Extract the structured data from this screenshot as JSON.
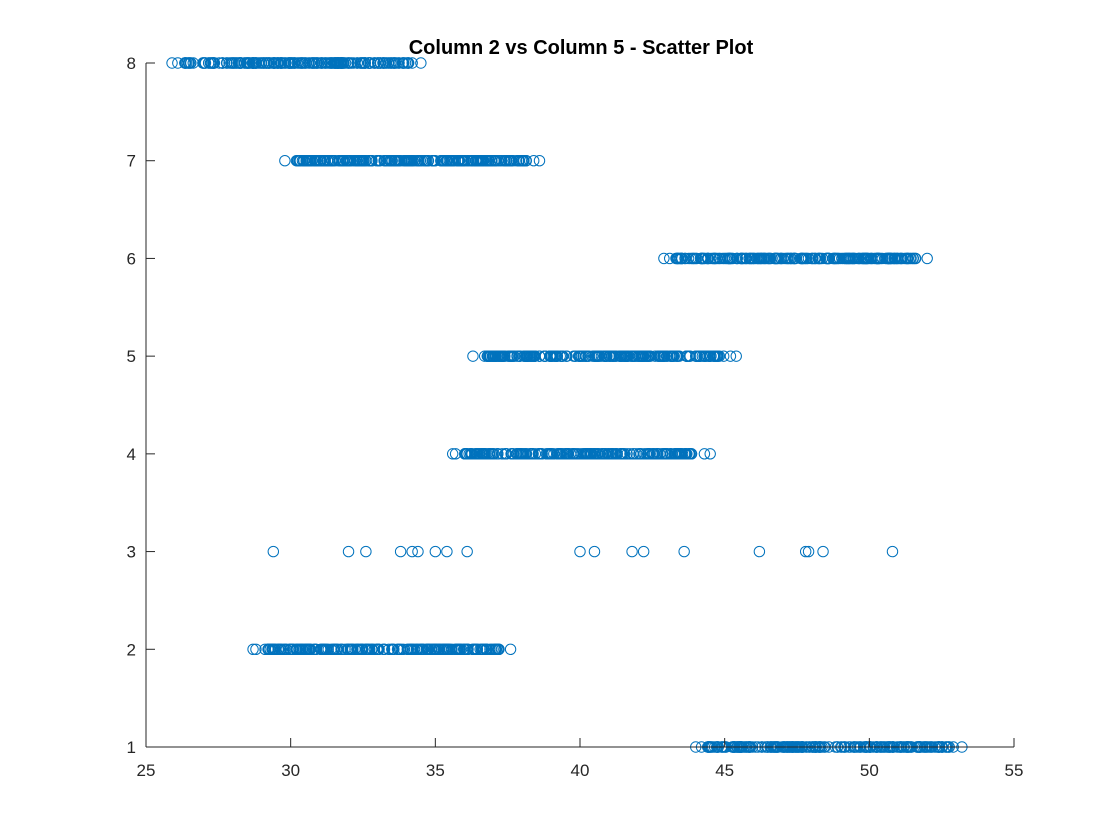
{
  "chart_data": {
    "type": "scatter",
    "title": "Column 2 vs Column 5 - Scatter Plot",
    "xlabel": "",
    "ylabel": "",
    "xlim": [
      25,
      55
    ],
    "ylim": [
      1,
      8
    ],
    "xticks": [
      25,
      30,
      35,
      40,
      45,
      50,
      55
    ],
    "yticks": [
      1,
      2,
      3,
      4,
      5,
      6,
      7,
      8
    ],
    "grid": false,
    "marker": "open-circle",
    "color": "#0072BD",
    "rows": [
      {
        "y": 8,
        "min": 25.9,
        "max": 34.5,
        "n": 240,
        "edge_points": [
          25.9,
          26.1,
          34.2,
          34.5
        ]
      },
      {
        "y": 7,
        "min": 29.8,
        "max": 38.6,
        "n": 240,
        "edge_points": [
          29.8,
          30.2,
          30.3,
          38.4,
          38.6
        ]
      },
      {
        "y": 6,
        "min": 42.9,
        "max": 52.0,
        "n": 240,
        "edge_points": [
          42.9,
          43.1,
          51.6,
          52.0
        ]
      },
      {
        "y": 5,
        "min": 36.3,
        "max": 45.4,
        "n": 240,
        "edge_points": [
          36.3,
          36.8,
          45.2,
          45.4
        ]
      },
      {
        "y": 4,
        "min": 35.6,
        "max": 44.5,
        "n": 240,
        "edge_points": [
          35.6,
          35.7,
          36.1,
          44.3,
          44.5
        ]
      },
      {
        "y": 2,
        "min": 28.7,
        "max": 37.6,
        "n": 240,
        "edge_points": [
          28.7,
          28.8,
          37.1,
          37.2,
          37.6
        ]
      },
      {
        "y": 1,
        "min": 44.0,
        "max": 53.2,
        "n": 240,
        "edge_points": [
          44.0,
          44.2,
          52.9,
          53.2
        ]
      }
    ],
    "sparse_points": [
      {
        "x": 29.4,
        "y": 3
      },
      {
        "x": 32.0,
        "y": 3
      },
      {
        "x": 32.6,
        "y": 3
      },
      {
        "x": 33.8,
        "y": 3
      },
      {
        "x": 34.2,
        "y": 3
      },
      {
        "x": 34.4,
        "y": 3
      },
      {
        "x": 35.0,
        "y": 3
      },
      {
        "x": 35.4,
        "y": 3
      },
      {
        "x": 36.1,
        "y": 3
      },
      {
        "x": 40.0,
        "y": 3
      },
      {
        "x": 40.5,
        "y": 3
      },
      {
        "x": 41.8,
        "y": 3
      },
      {
        "x": 42.2,
        "y": 3
      },
      {
        "x": 43.6,
        "y": 3
      },
      {
        "x": 46.2,
        "y": 3
      },
      {
        "x": 47.8,
        "y": 3
      },
      {
        "x": 47.9,
        "y": 3
      },
      {
        "x": 48.4,
        "y": 3
      },
      {
        "x": 50.8,
        "y": 3
      }
    ]
  }
}
